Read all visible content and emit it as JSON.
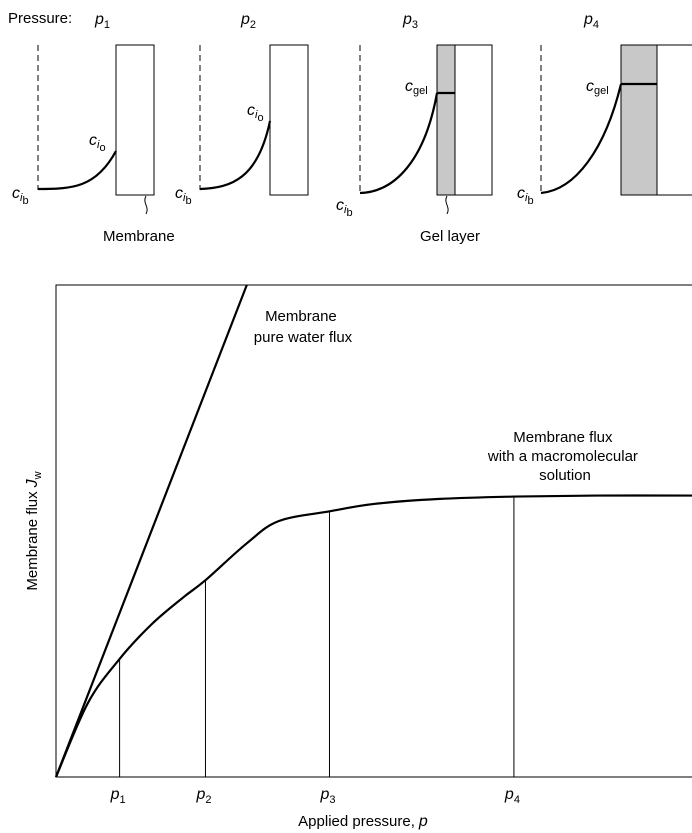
{
  "top_panels": {
    "pressure_label": "Pressure:",
    "stages": [
      {
        "symbol": "p",
        "index": "1"
      },
      {
        "symbol": "p",
        "index": "2"
      },
      {
        "symbol": "p",
        "index": "3"
      },
      {
        "symbol": "p",
        "index": "4"
      }
    ],
    "bulk_conc": {
      "main": "c",
      "sub_i": "i",
      "sub_b": "b"
    },
    "wall_conc": {
      "main": "c",
      "sub_i": "i",
      "sub_o": "o"
    },
    "gel_conc": {
      "main": "c",
      "sub": "gel"
    },
    "membrane_label": "Membrane",
    "gel_layer_label": "Gel layer",
    "gel_fill_color": "#c8c8c8"
  },
  "chart_data": {
    "type": "line",
    "xlabel": "Applied pressure,",
    "xlabel_symbol": "p",
    "ylabel": "Membrane flux",
    "ylabel_symbol": "J",
    "ylabel_sub": "w",
    "x_ticks": [
      {
        "symbol": "p",
        "index": "1",
        "x": 1
      },
      {
        "symbol": "p",
        "index": "2",
        "x": 2.35
      },
      {
        "symbol": "p",
        "index": "3",
        "x": 4.3
      },
      {
        "symbol": "p",
        "index": "4",
        "x": 7.2
      }
    ],
    "xlim": [
      0,
      10
    ],
    "ylim": [
      0,
      10
    ],
    "series": [
      {
        "name": "Membrane pure water flux",
        "label_lines": [
          "Membrane",
          "pure water flux"
        ],
        "x": [
          0,
          3.0
        ],
        "y": [
          0,
          10
        ]
      },
      {
        "name": "Membrane flux with a macromolecular solution",
        "label_lines": [
          "Membrane flux",
          "with a macromolecular",
          "solution"
        ],
        "x": [
          0,
          0.5,
          1,
          1.5,
          2,
          2.35,
          3,
          3.5,
          4.3,
          5,
          6,
          7.2,
          8.5,
          10
        ],
        "y": [
          0,
          1.5,
          2.4,
          3.1,
          3.65,
          4.0,
          4.75,
          5.2,
          5.4,
          5.55,
          5.65,
          5.7,
          5.72,
          5.72
        ]
      }
    ]
  }
}
